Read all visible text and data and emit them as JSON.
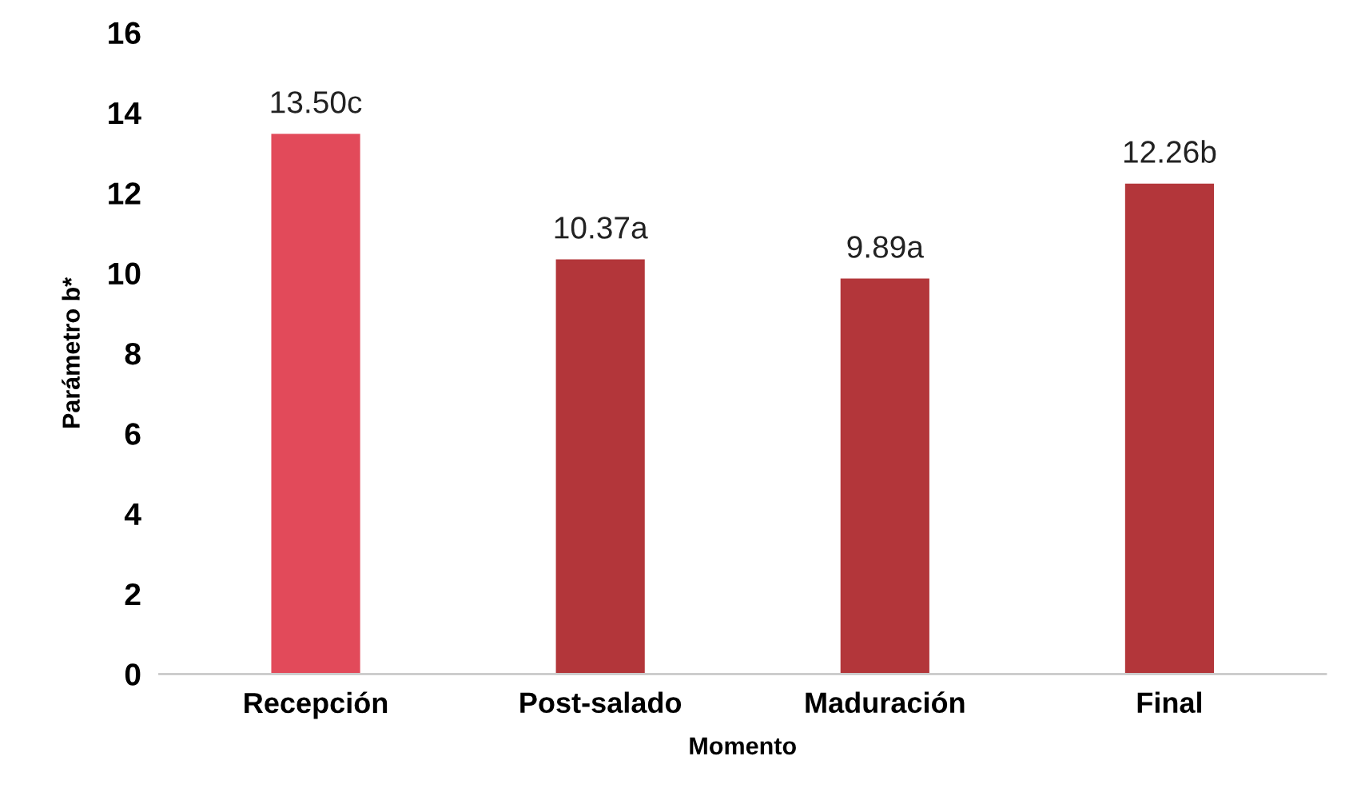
{
  "chart_data": {
    "type": "bar",
    "xlabel": "Momento",
    "ylabel": "Parámetro b*",
    "categories": [
      "Recepción",
      "Post-salado",
      "Maduración",
      "Final"
    ],
    "values": [
      13.5,
      10.37,
      9.89,
      12.26
    ],
    "value_labels": [
      "13.50c",
      "10.37a",
      "9.89a",
      "12.26b"
    ],
    "colors": [
      "#e24a5a",
      "#b3363a",
      "#b3363a",
      "#b3363a"
    ],
    "ylim": [
      0,
      16
    ],
    "yticks": [
      0,
      2,
      4,
      6,
      8,
      10,
      12,
      14,
      16
    ],
    "grid": false,
    "legend": false
  }
}
